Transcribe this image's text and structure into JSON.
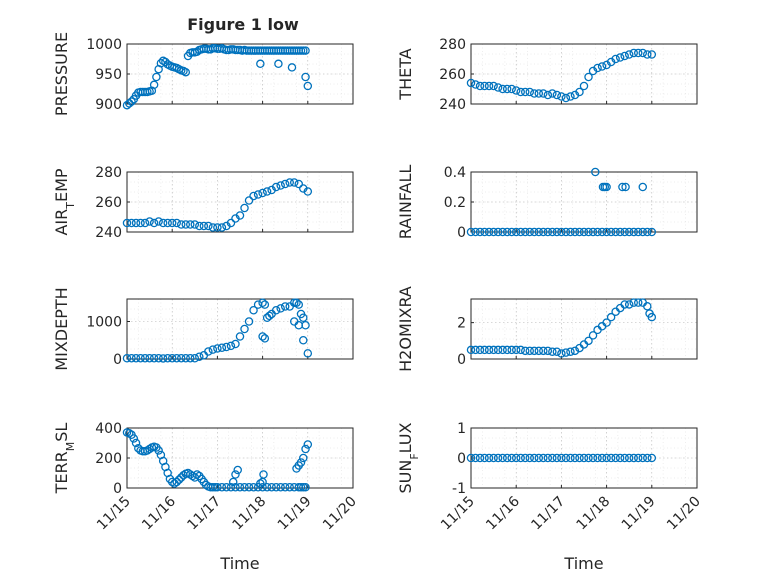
{
  "figure": {
    "title": "Figure 1 low"
  },
  "chart_data": [
    {
      "type": "scatter",
      "title": "Figure 1 low",
      "ylabel": "PRESSURE",
      "ylim": [
        900,
        1000
      ],
      "yticks": [
        900,
        950,
        1000
      ],
      "xlim": [
        0,
        5
      ],
      "xticks": [
        0,
        1,
        2,
        3,
        4,
        5
      ],
      "xticklabels": [
        "11/15",
        "11/16",
        "11/17",
        "11/18",
        "11/19",
        "11/20"
      ],
      "show_xticklabels": false,
      "xlabel": "",
      "grid": true,
      "marker_color": "#0072BD",
      "series": [
        {
          "x": [
            0.0,
            0.05,
            0.1,
            0.15,
            0.2,
            0.25,
            0.3,
            0.35,
            0.4,
            0.45,
            0.5,
            0.55,
            0.6,
            0.65,
            0.7,
            0.75,
            0.8,
            0.85,
            0.9,
            0.95,
            1.0,
            1.05,
            1.1,
            1.15,
            1.2,
            1.25,
            1.3,
            1.35,
            1.4,
            1.45,
            1.5,
            1.55,
            1.6,
            1.65,
            1.7,
            1.75,
            1.8,
            1.85,
            1.9,
            1.95,
            2.0,
            2.05,
            2.1,
            2.15,
            2.2,
            2.25,
            2.3,
            2.35,
            2.4,
            2.45,
            2.5,
            2.55,
            2.6,
            2.65,
            2.7,
            2.75,
            2.8,
            2.85,
            2.9,
            2.95,
            3.0,
            3.05,
            3.1,
            3.15,
            3.2,
            3.25,
            3.3,
            3.35,
            3.4,
            3.45,
            3.5,
            3.55,
            3.6,
            3.65,
            3.7,
            3.75,
            3.8,
            3.85,
            3.9,
            3.95,
            2.95,
            3.35,
            3.65,
            3.95,
            4.0
          ],
          "y": [
            898,
            901,
            904,
            908,
            914,
            919,
            920,
            920,
            920,
            920,
            921,
            922,
            932,
            945,
            958,
            968,
            972,
            970,
            966,
            964,
            962,
            961,
            960,
            958,
            956,
            955,
            953,
            980,
            985,
            986,
            986,
            987,
            990,
            991,
            992,
            992,
            991,
            991,
            993,
            993,
            992,
            992,
            993,
            991,
            990,
            990,
            991,
            991,
            990,
            990,
            990,
            989,
            990,
            989,
            989,
            989,
            989,
            989,
            989,
            989,
            989,
            989,
            989,
            989,
            989,
            989,
            989,
            989,
            989,
            989,
            989,
            989,
            989,
            989,
            989,
            989,
            989,
            989,
            989,
            989,
            967,
            967,
            961,
            945,
            930
          ]
        }
      ]
    },
    {
      "type": "scatter",
      "ylabel": "THETA",
      "ylim": [
        240,
        280
      ],
      "yticks": [
        240,
        260,
        280
      ],
      "xlim": [
        0,
        5
      ],
      "xticks": [
        0,
        1,
        2,
        3,
        4,
        5
      ],
      "xticklabels": [
        "11/15",
        "11/16",
        "11/17",
        "11/18",
        "11/19",
        "11/20"
      ],
      "show_xticklabels": false,
      "xlabel": "",
      "grid": true,
      "marker_color": "#0072BD",
      "series": [
        {
          "x": [
            0.0,
            0.1,
            0.2,
            0.3,
            0.4,
            0.5,
            0.6,
            0.7,
            0.8,
            0.9,
            1.0,
            1.1,
            1.2,
            1.3,
            1.4,
            1.5,
            1.6,
            1.7,
            1.8,
            1.9,
            2.0,
            2.1,
            2.2,
            2.3,
            2.4,
            2.5,
            2.6,
            2.7,
            2.8,
            2.9,
            3.0,
            3.1,
            3.2,
            3.3,
            3.4,
            3.5,
            3.6,
            3.7,
            3.8,
            3.9,
            4.0
          ],
          "y": [
            254,
            253,
            252,
            252,
            252,
            252,
            251,
            250,
            250,
            250,
            249,
            248,
            248,
            248,
            247,
            247,
            247,
            246,
            247,
            246,
            245,
            244,
            245,
            246,
            248,
            252,
            258,
            262,
            264,
            265,
            266,
            268,
            270,
            271,
            272,
            273,
            274,
            274,
            274,
            273,
            273
          ]
        }
      ]
    },
    {
      "type": "scatter",
      "ylabel": "AIR_TEMP",
      "ylim": [
        240,
        280
      ],
      "yticks": [
        240,
        260,
        280
      ],
      "xlim": [
        0,
        5
      ],
      "xticks": [
        0,
        1,
        2,
        3,
        4,
        5
      ],
      "xticklabels": [
        "11/15",
        "11/16",
        "11/17",
        "11/18",
        "11/19",
        "11/20"
      ],
      "show_xticklabels": false,
      "xlabel": "",
      "grid": true,
      "marker_color": "#0072BD",
      "series": [
        {
          "x": [
            0.0,
            0.1,
            0.2,
            0.3,
            0.4,
            0.5,
            0.6,
            0.7,
            0.8,
            0.9,
            1.0,
            1.1,
            1.2,
            1.3,
            1.4,
            1.5,
            1.6,
            1.7,
            1.8,
            1.9,
            2.0,
            2.1,
            2.2,
            2.3,
            2.4,
            2.5,
            2.6,
            2.7,
            2.8,
            2.9,
            3.0,
            3.1,
            3.2,
            3.3,
            3.4,
            3.5,
            3.6,
            3.7,
            3.8,
            3.9,
            4.0
          ],
          "y": [
            246,
            246,
            246,
            246,
            246,
            247,
            246,
            247,
            246,
            246,
            246,
            246,
            245,
            245,
            245,
            245,
            244,
            244,
            244,
            243,
            243,
            243,
            244,
            246,
            249,
            251,
            256,
            261,
            264,
            265,
            266,
            267,
            268,
            270,
            271,
            272,
            273,
            273,
            272,
            269,
            267
          ]
        }
      ]
    },
    {
      "type": "scatter",
      "ylabel": "RAINFALL",
      "ylim": [
        0,
        0.4
      ],
      "yticks": [
        0,
        0.2,
        0.4
      ],
      "xlim": [
        0,
        5
      ],
      "xticks": [
        0,
        1,
        2,
        3,
        4,
        5
      ],
      "xticklabels": [
        "11/15",
        "11/16",
        "11/17",
        "11/18",
        "11/19",
        "11/20"
      ],
      "show_xticklabels": false,
      "xlabel": "",
      "grid": true,
      "marker_color": "#0072BD",
      "series": [
        {
          "x": [
            0.0,
            0.1,
            0.2,
            0.3,
            0.4,
            0.5,
            0.6,
            0.7,
            0.8,
            0.9,
            1.0,
            1.1,
            1.2,
            1.3,
            1.4,
            1.5,
            1.6,
            1.7,
            1.8,
            1.9,
            2.0,
            2.1,
            2.2,
            2.3,
            2.4,
            2.5,
            2.6,
            2.7,
            2.8,
            2.9,
            3.0,
            3.1,
            3.2,
            3.3,
            3.4,
            3.5,
            3.6,
            3.7,
            3.8,
            3.9,
            4.0,
            2.75,
            2.92,
            2.96,
            3.0,
            3.35,
            3.42,
            3.8
          ],
          "y": [
            0,
            0,
            0,
            0,
            0,
            0,
            0,
            0,
            0,
            0,
            0,
            0,
            0,
            0,
            0,
            0,
            0,
            0,
            0,
            0,
            0,
            0,
            0,
            0,
            0,
            0,
            0,
            0,
            0,
            0,
            0,
            0,
            0,
            0,
            0,
            0,
            0,
            0,
            0,
            0,
            0,
            0.4,
            0.3,
            0.3,
            0.3,
            0.3,
            0.3,
            0.3
          ]
        }
      ]
    },
    {
      "type": "scatter",
      "ylabel": "MIXDEPTH",
      "ylim": [
        0,
        1600
      ],
      "yticks": [
        0,
        1000
      ],
      "xlim": [
        0,
        5
      ],
      "xticks": [
        0,
        1,
        2,
        3,
        4,
        5
      ],
      "xticklabels": [
        "11/15",
        "11/16",
        "11/17",
        "11/18",
        "11/19",
        "11/20"
      ],
      "show_xticklabels": false,
      "xlabel": "",
      "grid": true,
      "marker_color": "#0072BD",
      "series": [
        {
          "x": [
            0.0,
            0.1,
            0.2,
            0.3,
            0.4,
            0.5,
            0.6,
            0.7,
            0.8,
            0.9,
            1.0,
            1.1,
            1.2,
            1.3,
            1.4,
            1.5,
            1.6,
            1.7,
            1.8,
            1.9,
            2.0,
            2.1,
            2.2,
            2.3,
            2.4,
            2.5,
            2.6,
            2.7,
            2.8,
            2.9,
            3.0,
            3.05,
            3.1,
            3.15,
            3.2,
            3.3,
            3.4,
            3.5,
            3.6,
            3.7,
            3.75,
            3.8,
            3.85,
            3.9,
            3.95,
            3.0,
            3.05,
            3.7,
            3.8,
            3.9,
            4.0
          ],
          "y": [
            20,
            20,
            20,
            20,
            20,
            20,
            20,
            20,
            15,
            20,
            20,
            20,
            20,
            20,
            20,
            20,
            60,
            100,
            200,
            250,
            280,
            300,
            320,
            350,
            400,
            600,
            800,
            1000,
            1300,
            1450,
            1500,
            1450,
            1100,
            1150,
            1200,
            1300,
            1350,
            1400,
            1400,
            1500,
            1500,
            1450,
            1200,
            1100,
            900,
            600,
            550,
            1000,
            900,
            500,
            150
          ]
        }
      ]
    },
    {
      "type": "scatter",
      "ylabel": "H2OMIXRA",
      "ylim": [
        0,
        3.3
      ],
      "yticks": [
        0,
        2
      ],
      "xlim": [
        0,
        5
      ],
      "xticks": [
        0,
        1,
        2,
        3,
        4,
        5
      ],
      "xticklabels": [
        "11/15",
        "11/16",
        "11/17",
        "11/18",
        "11/19",
        "11/20"
      ],
      "show_xticklabels": false,
      "xlabel": "",
      "grid": true,
      "marker_color": "#0072BD",
      "series": [
        {
          "x": [
            0.0,
            0.1,
            0.2,
            0.3,
            0.4,
            0.5,
            0.6,
            0.7,
            0.8,
            0.9,
            1.0,
            1.1,
            1.2,
            1.3,
            1.4,
            1.5,
            1.6,
            1.7,
            1.8,
            1.9,
            2.0,
            2.1,
            2.2,
            2.3,
            2.4,
            2.5,
            2.6,
            2.7,
            2.8,
            2.9,
            3.0,
            3.1,
            3.2,
            3.3,
            3.4,
            3.5,
            3.6,
            3.7,
            3.8,
            3.9,
            3.95,
            4.0
          ],
          "y": [
            0.5,
            0.5,
            0.5,
            0.5,
            0.5,
            0.5,
            0.5,
            0.5,
            0.5,
            0.5,
            0.5,
            0.5,
            0.45,
            0.45,
            0.45,
            0.45,
            0.45,
            0.45,
            0.4,
            0.4,
            0.3,
            0.35,
            0.4,
            0.45,
            0.6,
            0.8,
            1.0,
            1.3,
            1.6,
            1.8,
            2.0,
            2.3,
            2.6,
            2.8,
            3.0,
            3.0,
            3.1,
            3.1,
            3.1,
            2.9,
            2.5,
            2.3
          ]
        }
      ]
    },
    {
      "type": "scatter",
      "ylabel": "TERR_MSL",
      "ylim": [
        0,
        400
      ],
      "yticks": [
        0,
        200,
        400
      ],
      "xlim": [
        0,
        5
      ],
      "xticks": [
        0,
        1,
        2,
        3,
        4,
        5
      ],
      "xticklabels": [
        "11/15",
        "11/16",
        "11/17",
        "11/18",
        "11/19",
        "11/20"
      ],
      "show_xticklabels": true,
      "xlabel": "Time",
      "grid": true,
      "marker_color": "#0072BD",
      "series": [
        {
          "x": [
            0.0,
            0.05,
            0.1,
            0.15,
            0.2,
            0.25,
            0.3,
            0.35,
            0.4,
            0.45,
            0.5,
            0.55,
            0.6,
            0.65,
            0.7,
            0.75,
            0.8,
            0.85,
            0.9,
            0.95,
            1.0,
            1.05,
            1.1,
            1.15,
            1.2,
            1.25,
            1.3,
            1.35,
            1.4,
            1.45,
            1.5,
            1.55,
            1.6,
            1.65,
            1.7,
            1.75,
            1.8,
            1.85,
            1.9,
            1.95,
            2.0,
            2.1,
            2.2,
            2.3,
            2.4,
            2.5,
            2.6,
            2.7,
            2.8,
            2.9,
            3.0,
            3.1,
            3.2,
            3.3,
            3.4,
            3.5,
            3.6,
            3.7,
            3.8,
            3.85,
            3.9,
            3.95,
            2.35,
            2.4,
            2.45,
            2.95,
            3.0,
            3.02,
            3.75,
            3.8,
            3.85,
            3.9,
            3.95,
            4.0
          ],
          "y": [
            370,
            365,
            355,
            330,
            300,
            265,
            250,
            245,
            245,
            250,
            260,
            270,
            275,
            270,
            250,
            220,
            180,
            140,
            100,
            60,
            40,
            30,
            40,
            55,
            70,
            85,
            95,
            100,
            90,
            80,
            70,
            90,
            80,
            60,
            40,
            20,
            10,
            5,
            5,
            5,
            5,
            5,
            5,
            5,
            5,
            5,
            5,
            5,
            5,
            5,
            5,
            5,
            5,
            5,
            5,
            5,
            5,
            5,
            5,
            5,
            5,
            5,
            40,
            90,
            120,
            30,
            40,
            90,
            130,
            150,
            170,
            200,
            260,
            290
          ]
        }
      ]
    },
    {
      "type": "scatter",
      "ylabel": "SUN_FLUX",
      "ylim": [
        -1,
        1
      ],
      "yticks": [
        -1,
        0,
        1
      ],
      "xlim": [
        0,
        5
      ],
      "xticks": [
        0,
        1,
        2,
        3,
        4,
        5
      ],
      "xticklabels": [
        "11/15",
        "11/16",
        "11/17",
        "11/18",
        "11/19",
        "11/20"
      ],
      "show_xticklabels": true,
      "xlabel": "Time",
      "grid": true,
      "marker_color": "#0072BD",
      "series": [
        {
          "x": [
            0.0,
            0.1,
            0.2,
            0.3,
            0.4,
            0.5,
            0.6,
            0.7,
            0.8,
            0.9,
            1.0,
            1.1,
            1.2,
            1.3,
            1.4,
            1.5,
            1.6,
            1.7,
            1.8,
            1.9,
            2.0,
            2.1,
            2.2,
            2.3,
            2.4,
            2.5,
            2.6,
            2.7,
            2.8,
            2.9,
            3.0,
            3.1,
            3.2,
            3.3,
            3.4,
            3.5,
            3.6,
            3.7,
            3.8,
            3.9,
            4.0
          ],
          "y": [
            0,
            0,
            0,
            0,
            0,
            0,
            0,
            0,
            0,
            0,
            0,
            0,
            0,
            0,
            0,
            0,
            0,
            0,
            0,
            0,
            0,
            0,
            0,
            0,
            0,
            0,
            0,
            0,
            0,
            0,
            0,
            0,
            0,
            0,
            0,
            0,
            0,
            0,
            0,
            0,
            0
          ]
        }
      ]
    }
  ]
}
